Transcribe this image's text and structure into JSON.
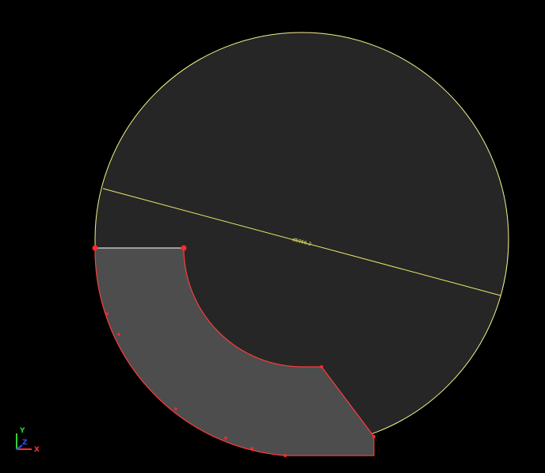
{
  "cad_view": {
    "background_color": "#000000",
    "colors": {
      "circle_fill": "#262626",
      "circle_stroke": "#f2f28c",
      "dimension_line": "#e8e86a",
      "dimension_text": "#e8e86a",
      "sector_fill": "#4d4d4d",
      "sector_edge": "#ff3b3b",
      "sector_top_edge": "#d9d9d9",
      "vertex": "#ff2a2a"
    },
    "dimension": {
      "label": "d5066.2"
    },
    "axis_triad": {
      "x_label": "X",
      "y_label": "Y",
      "z_label": "Z",
      "x_color": "#ff3030",
      "y_color": "#30d030",
      "z_color": "#3050ff"
    }
  }
}
